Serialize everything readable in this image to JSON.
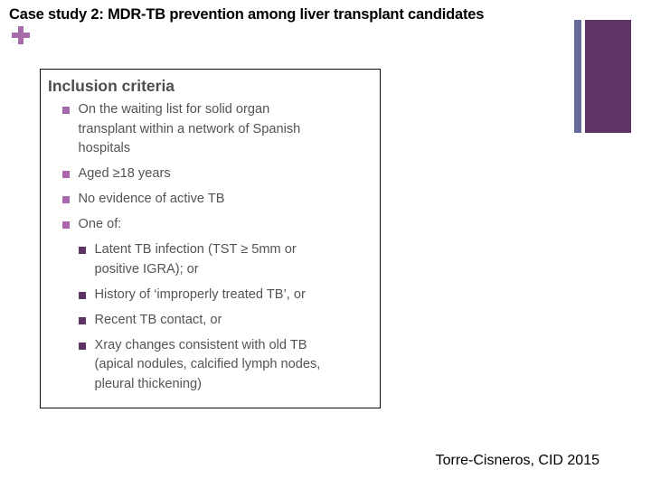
{
  "slide": {
    "title": "Case study 2: MDR-TB prevention among liver transplant candidates",
    "citation": "Torre-Cisneros, CID 2015"
  },
  "criteria_box": {
    "heading": "Inclusion criteria",
    "items": [
      {
        "level": 1,
        "text": "On the waiting list for solid organ\ntransplant within a network of Spanish\nhospitals"
      },
      {
        "level": 1,
        "text": "Aged ≥18 years"
      },
      {
        "level": 1,
        "text": "No evidence of active TB"
      },
      {
        "level": 1,
        "text": "One of:"
      },
      {
        "level": 2,
        "text": "Latent TB infection (TST ≥ 5mm or\npositive IGRA); or"
      },
      {
        "level": 2,
        "text": "History of ‘improperly treated TB’, or"
      },
      {
        "level": 2,
        "text": "Recent TB contact, or"
      },
      {
        "level": 2,
        "text": "Xray changes consistent with old TB\n(apical nodules, calcified lymph nodes,\npleural thickening)"
      }
    ]
  },
  "colors": {
    "accent_light_purple": "#A868AC",
    "accent_dark_purple": "#5E3466",
    "accent_slate_bar": "#666B9B",
    "body_text_gray": "#545454",
    "heading_gray": "#4D4D4D"
  }
}
